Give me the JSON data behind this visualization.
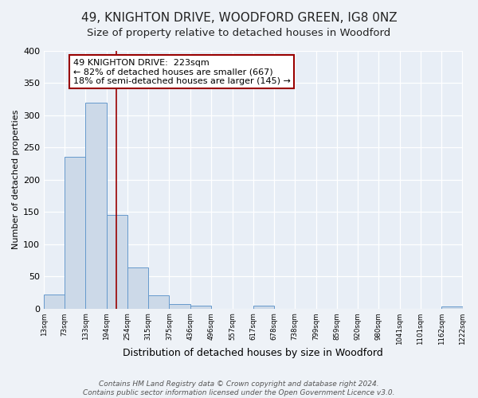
{
  "title": "49, KNIGHTON DRIVE, WOODFORD GREEN, IG8 0NZ",
  "subtitle": "Size of property relative to detached houses in Woodford",
  "xlabel": "Distribution of detached houses by size in Woodford",
  "ylabel": "Number of detached properties",
  "bin_edges": [
    13,
    73,
    133,
    194,
    254,
    315,
    375,
    436,
    496,
    557,
    617,
    678,
    738,
    799,
    859,
    920,
    980,
    1041,
    1101,
    1162,
    1222
  ],
  "bin_counts": [
    22,
    236,
    320,
    145,
    64,
    21,
    7,
    5,
    0,
    0,
    5,
    0,
    0,
    0,
    0,
    0,
    0,
    0,
    0,
    3
  ],
  "bar_color": "#ccd9e8",
  "bar_edge_color": "#6699cc",
  "property_size": 223,
  "vline_color": "#990000",
  "annotation_line1": "49 KNIGHTON DRIVE:  223sqm",
  "annotation_line2": "← 82% of detached houses are smaller (667)",
  "annotation_line3": "18% of semi-detached houses are larger (145) →",
  "annotation_box_edgecolor": "#990000",
  "annotation_box_facecolor": "#ffffff",
  "ylim": [
    0,
    400
  ],
  "yticks": [
    0,
    50,
    100,
    150,
    200,
    250,
    300,
    350,
    400
  ],
  "tick_labels": [
    "13sqm",
    "73sqm",
    "133sqm",
    "194sqm",
    "254sqm",
    "315sqm",
    "375sqm",
    "436sqm",
    "496sqm",
    "557sqm",
    "617sqm",
    "678sqm",
    "738sqm",
    "799sqm",
    "859sqm",
    "920sqm",
    "980sqm",
    "1041sqm",
    "1101sqm",
    "1162sqm",
    "1222sqm"
  ],
  "footer_line1": "Contains HM Land Registry data © Crown copyright and database right 2024.",
  "footer_line2": "Contains public sector information licensed under the Open Government Licence v3.0.",
  "background_color": "#eef2f7",
  "plot_background_color": "#e8eef6",
  "grid_color": "#ffffff",
  "title_fontsize": 11,
  "subtitle_fontsize": 9.5,
  "xlabel_fontsize": 9,
  "ylabel_fontsize": 8,
  "footer_fontsize": 6.5,
  "annotation_fontsize": 8
}
